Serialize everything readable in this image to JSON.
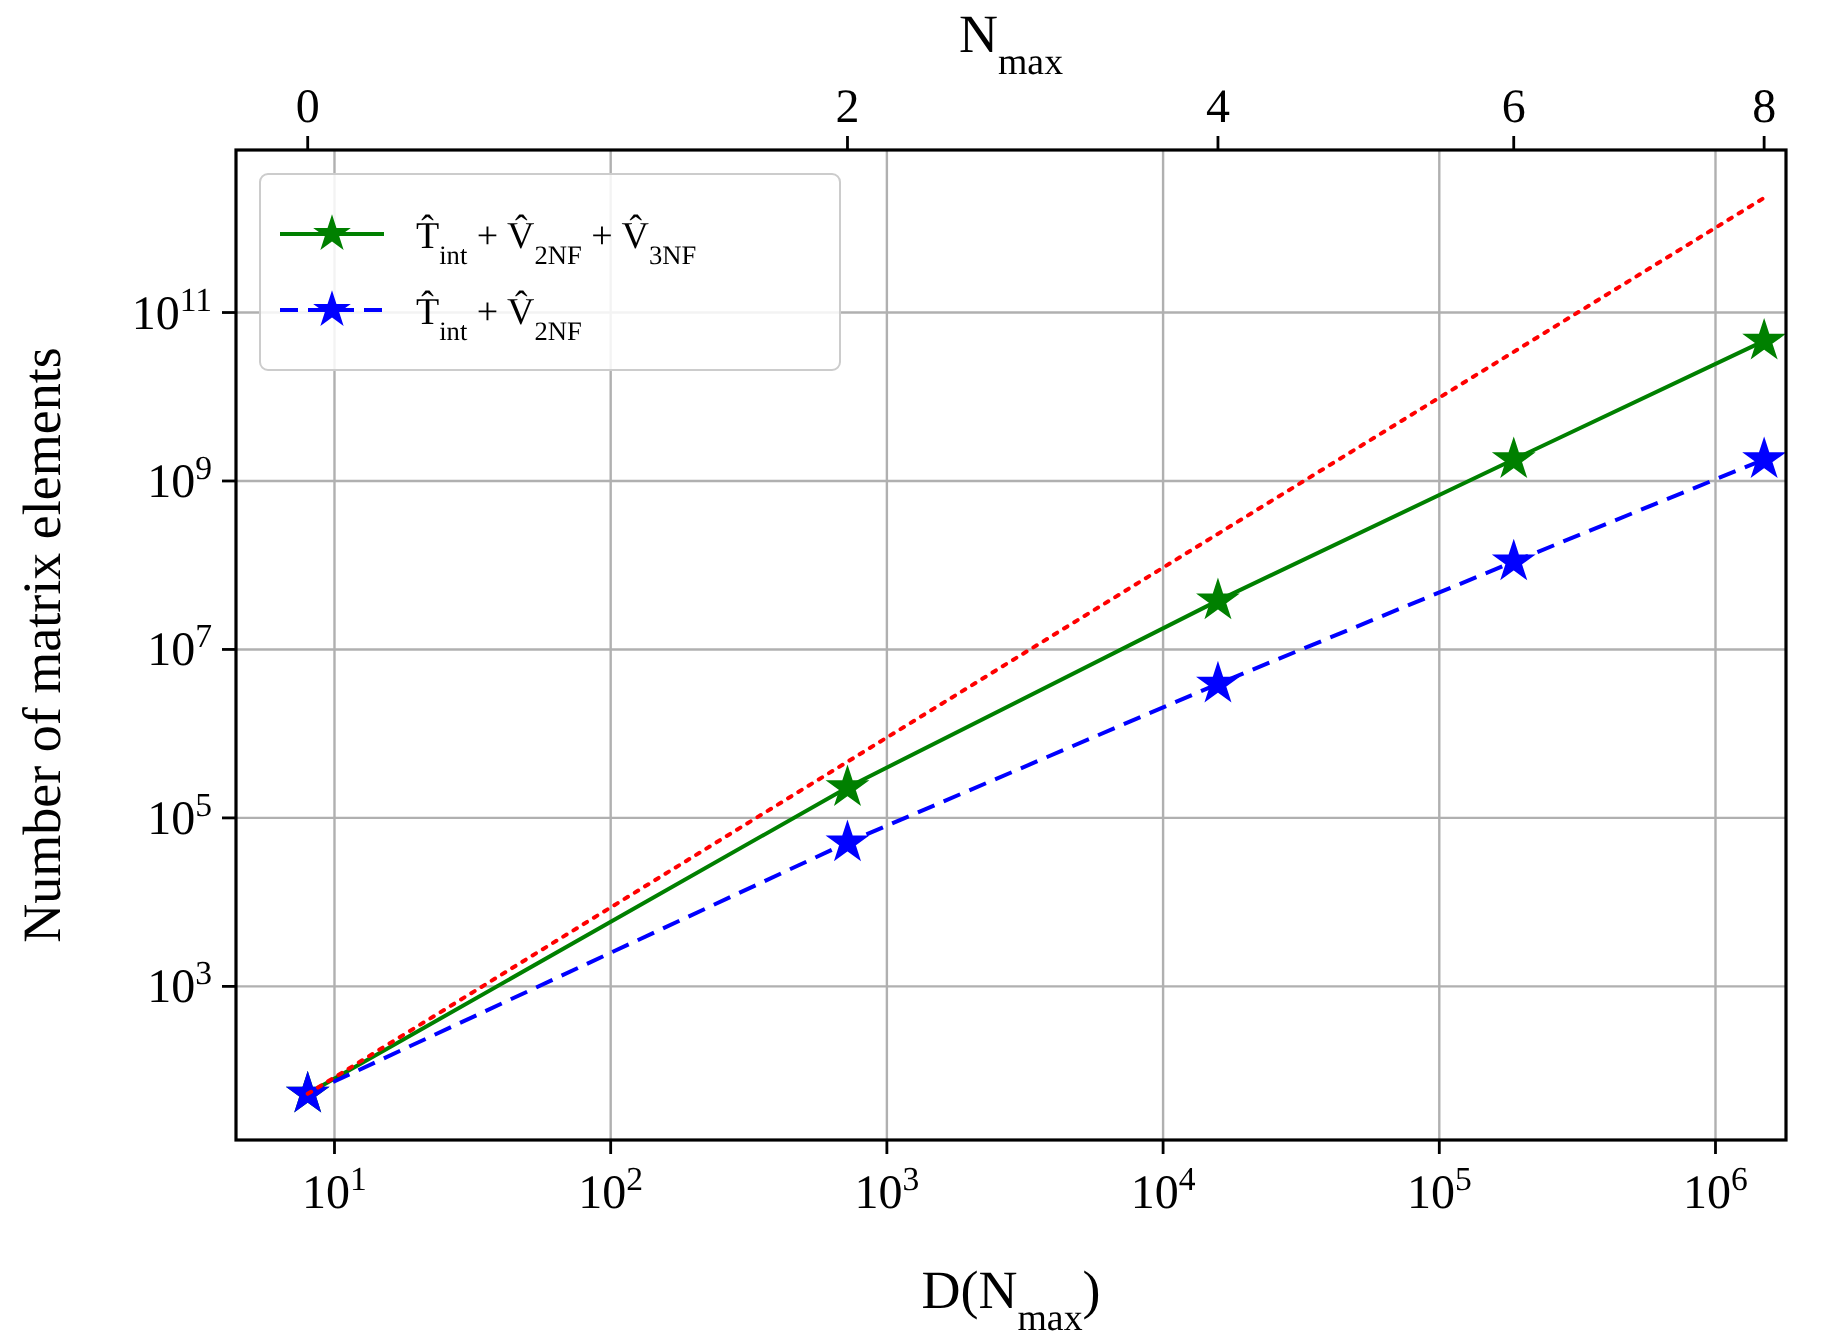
{
  "chart_data": {
    "type": "line",
    "xlabel": "D(N$_{max}$)",
    "x2label": "N$_{max}$",
    "ylabel": "Number of matrix elements",
    "log": "xy",
    "grid": true,
    "legend": "top left",
    "x": [
      8,
      720,
      15800,
      186000,
      1500000
    ],
    "series": [
      {
        "name": "T̂$_{int}$ + V̂$_{2NF}$ + V̂$_{3NF}$",
        "color": "#008000",
        "values": [
          53,
          230000,
          38000000,
          1800000000,
          46000000000
        ],
        "marker": "star",
        "line_style": "solid"
      },
      {
        "name": "T̂$_{int}$ + V̂$_{2NF}$",
        "color": "#0000ff",
        "values": [
          53,
          51000,
          3900000,
          110000000,
          1800000000
        ],
        "marker": "star",
        "line_style": "dashed"
      },
      {
        "color": "#ff0000",
        "x": [
          8,
          1500000
        ],
        "values": [
          53,
          2300000000000
        ],
        "marker": "none",
        "line_style": "dotted"
      }
    ],
    "xlim": [
      4.4,
      1800000
    ],
    "xticks": [
      {
        "value": 10,
        "label": "10$^{1}$"
      },
      {
        "value": 100,
        "label": "10$^{2}$"
      },
      {
        "value": 1000,
        "label": "10$^{3}$"
      },
      {
        "value": 10000,
        "label": "10$^{4}$"
      },
      {
        "value": 100000,
        "label": "10$^{5}$"
      },
      {
        "value": 1000000,
        "label": "10$^{6}$"
      }
    ],
    "annotations": [
      {
        "text": "0",
        "x": 8
      },
      {
        "text": "2",
        "x": 720
      },
      {
        "text": "4",
        "x": 15800
      },
      {
        "text": "6",
        "x": 186000
      },
      {
        "text": "8",
        "x": 1500000
      }
    ],
    "ylim": [
      15,
      8500000000000
    ],
    "yticks": [
      {
        "value": 1000,
        "label": "10$^{3}$"
      },
      {
        "value": 100000,
        "label": "10$^{5}$"
      },
      {
        "value": 10000000,
        "label": "10$^{7}$"
      },
      {
        "value": 1000000000,
        "label": "10$^{9}$"
      },
      {
        "value": 100000000000,
        "label": "10$^{11}$"
      }
    ]
  }
}
